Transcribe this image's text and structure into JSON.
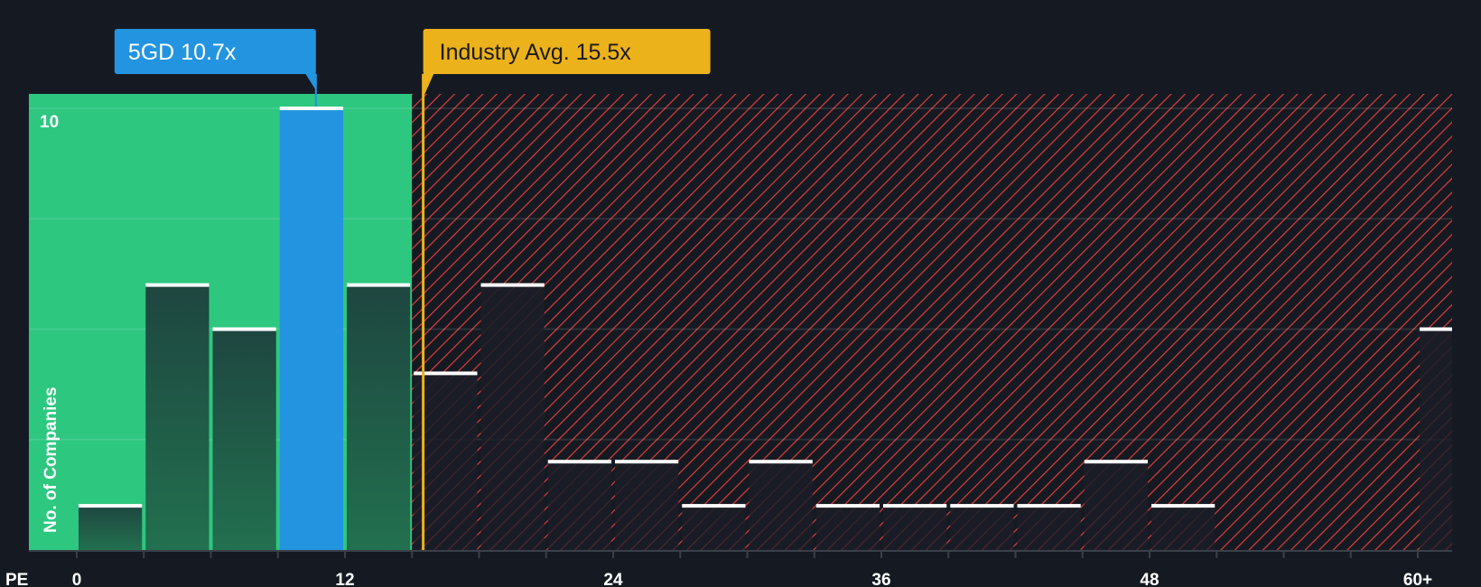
{
  "chart_data": {
    "type": "bar",
    "title": "",
    "xlabel": "PE",
    "ylabel": "No. of Companies",
    "bin_width": 3,
    "bins": [
      {
        "start": 0,
        "value": 1
      },
      {
        "start": 3,
        "value": 6
      },
      {
        "start": 6,
        "value": 5
      },
      {
        "start": 9,
        "value": 10
      },
      {
        "start": 12,
        "value": 6
      },
      {
        "start": 15,
        "value": 4
      },
      {
        "start": 18,
        "value": 6
      },
      {
        "start": 21,
        "value": 2
      },
      {
        "start": 24,
        "value": 2
      },
      {
        "start": 27,
        "value": 1
      },
      {
        "start": 30,
        "value": 2
      },
      {
        "start": 33,
        "value": 1
      },
      {
        "start": 36,
        "value": 1
      },
      {
        "start": 39,
        "value": 1
      },
      {
        "start": 42,
        "value": 1
      },
      {
        "start": 45,
        "value": 2
      },
      {
        "start": 48,
        "value": 1
      },
      {
        "start": 51,
        "value": 0
      },
      {
        "start": 54,
        "value": 0
      },
      {
        "start": 57,
        "value": 0
      },
      {
        "start": 60,
        "value": 5,
        "label": "60+"
      }
    ],
    "x_ticks": [
      {
        "v": 0,
        "label": "0"
      },
      {
        "v": 12,
        "label": "12"
      },
      {
        "v": 24,
        "label": "24"
      },
      {
        "v": 36,
        "label": "36"
      },
      {
        "v": 48,
        "label": "48"
      },
      {
        "v": 60,
        "label": "60+"
      }
    ],
    "y_ticks": [
      {
        "v": 10,
        "label": "10"
      }
    ],
    "gridlines": [
      2.5,
      5,
      7.5,
      10
    ],
    "xlim": [
      0,
      61.5
    ],
    "ylim": [
      0,
      10.3
    ],
    "highlight": {
      "label": "5GD 10.7x",
      "value": 10.7,
      "bin_start": 9
    },
    "industry_avg": {
      "label": "Industry Avg. 15.5x",
      "value": 15.5
    },
    "fair_zone_end": 15,
    "colors": {
      "fair": "#2ec780",
      "highlight": "#2394e0",
      "industry": "#ecb21b",
      "expensive_hatch": "#e03c3c",
      "background": "#151a22"
    }
  }
}
